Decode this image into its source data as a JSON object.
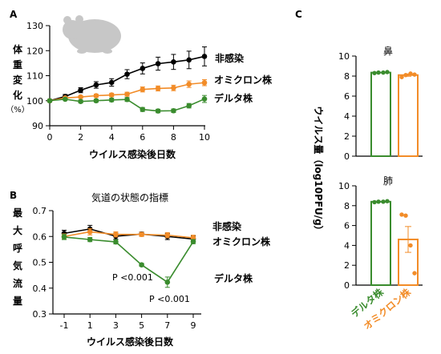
{
  "colors": {
    "uninfected": "#000000",
    "omicron": "#f28c28",
    "delta": "#3a8c2e"
  },
  "icon": "hamster-silhouette-icon",
  "chart_data": [
    {
      "panel": "A",
      "type": "line",
      "ylabel": "体重変化（%）",
      "xlabel": "ウイルス感染後日数",
      "xlim": [
        0,
        10
      ],
      "ylim": [
        90,
        130
      ],
      "xticks": [
        "0",
        "2",
        "4",
        "6",
        "8",
        "10"
      ],
      "yticks": [
        "90",
        "100",
        "110",
        "120",
        "130"
      ],
      "x": [
        0,
        1,
        2,
        3,
        4,
        5,
        6,
        7,
        8,
        9,
        10
      ],
      "series": [
        {
          "name": "非感染",
          "key": "uninfected",
          "values": [
            100,
            101.7,
            104.2,
            106.3,
            107.3,
            110.6,
            112.9,
            114.8,
            115.5,
            116.3,
            117.7
          ],
          "err": [
            0.5,
            0.8,
            1.0,
            1.3,
            1.5,
            1.8,
            2.2,
            2.6,
            3.0,
            3.5,
            3.8
          ]
        },
        {
          "name": "オミクロン株",
          "key": "omicron",
          "values": [
            100,
            101.1,
            101.5,
            102.0,
            102.3,
            102.6,
            104.5,
            104.9,
            105.1,
            106.6,
            107.2
          ],
          "err": [
            0.3,
            0.4,
            0.5,
            0.6,
            0.7,
            0.8,
            1.0,
            1.0,
            1.1,
            1.3,
            1.2
          ]
        },
        {
          "name": "デルタ株",
          "key": "delta",
          "values": [
            100,
            100.6,
            99.7,
            100.0,
            100.3,
            100.5,
            96.5,
            95.9,
            96.0,
            98.0,
            100.7
          ],
          "err": [
            0.3,
            0.4,
            0.6,
            0.6,
            0.7,
            0.8,
            0.8,
            0.7,
            0.7,
            0.9,
            1.4
          ]
        }
      ]
    },
    {
      "panel": "B",
      "type": "line",
      "title": "気道の状態の指標",
      "ylabel": "最大呼気流量",
      "xlabel": "ウイルス感染後日数",
      "xlim": [
        -1,
        9
      ],
      "ylim": [
        0.3,
        0.7
      ],
      "xticks": [
        "-1",
        "1",
        "3",
        "5",
        "7",
        "9"
      ],
      "yticks": [
        "0.3",
        "0.4",
        "0.5",
        "0.6",
        "0.7"
      ],
      "x": [
        -1,
        1,
        3,
        5,
        7,
        9
      ],
      "series": [
        {
          "name": "非感染",
          "key": "uninfected",
          "values": [
            0.612,
            0.629,
            0.601,
            0.609,
            0.6,
            0.59
          ],
          "err": [
            0.012,
            0.014,
            0.012,
            0.008,
            0.012,
            0.012
          ]
        },
        {
          "name": "オミクロン株",
          "key": "omicron",
          "values": [
            0.6,
            0.618,
            0.608,
            0.608,
            0.605,
            0.595
          ],
          "err": [
            0.01,
            0.012,
            0.01,
            0.008,
            0.01,
            0.01
          ]
        },
        {
          "name": "デルタ株",
          "key": "delta",
          "values": [
            0.598,
            0.588,
            0.579,
            0.49,
            0.423,
            0.58
          ],
          "err": [
            0.01,
            0.008,
            0.008,
            0.006,
            0.02,
            0.008
          ]
        }
      ],
      "annotations": [
        "P <0.001",
        "P <0.001"
      ]
    },
    {
      "panel": "C",
      "type": "bar",
      "ylabel": "ウイルス量（log10PFU/g）",
      "categories": [
        "デルタ株",
        "オミクロン株"
      ],
      "subplots": [
        {
          "title": "鼻",
          "ylim": [
            0,
            10
          ],
          "yticks": [
            "0",
            "2",
            "4",
            "6",
            "8",
            "10"
          ],
          "values": [
            8.35,
            8.1
          ],
          "err": [
            0.05,
            0.12
          ],
          "points": [
            [
              8.3,
              8.35,
              8.35,
              8.4
            ],
            [
              7.9,
              8.1,
              8.25,
              8.15
            ]
          ]
        },
        {
          "title": "肺",
          "ylim": [
            0,
            10
          ],
          "yticks": [
            "0",
            "2",
            "4",
            "6",
            "8",
            "10"
          ],
          "values": [
            8.4,
            4.6
          ],
          "err": [
            0.03,
            1.3
          ],
          "points": [
            [
              8.35,
              8.4,
              8.4,
              8.45
            ],
            [
              7.1,
              7.0,
              4.0,
              1.2
            ]
          ]
        }
      ]
    }
  ],
  "labels": {
    "a_series": [
      "非感染",
      "オミクロン株",
      "デルタ株"
    ],
    "b_series": [
      "非感染",
      "オミクロン株",
      "デルタ株"
    ]
  }
}
